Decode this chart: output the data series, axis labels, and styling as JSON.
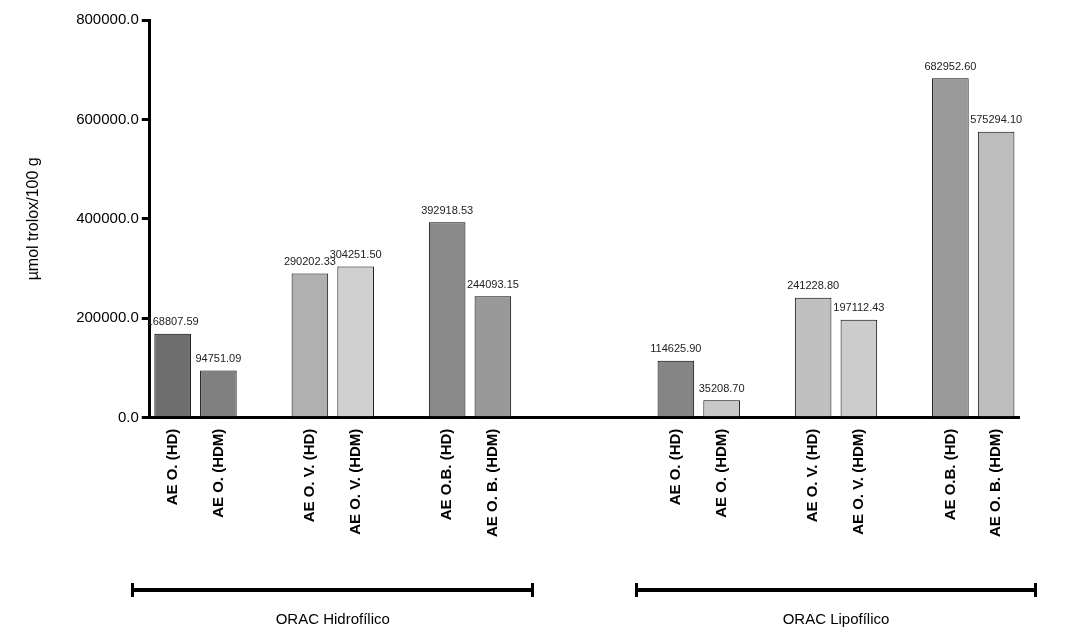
{
  "chart_data": {
    "type": "bar",
    "ylabel": "µmol trolox/100 g",
    "categories": [
      "AE O. (HD)",
      "AE O. (HDM)",
      null,
      "AE O. V. (HD)",
      "AE O. V. (HDM)",
      null,
      "AE O.B. (HD)",
      "AE O. B. (HDM)",
      null,
      null,
      null,
      "AE O. (HD)",
      "AE O. (HDM)",
      null,
      "AE O. V. (HD)",
      "AE O. V. (HDM)",
      null,
      "AE O.B. (HD)",
      "AE O. B. (HDM)"
    ],
    "values": [
      168807.59,
      94751.09,
      null,
      290202.33,
      304251.5,
      null,
      392918.53,
      244093.15,
      null,
      null,
      null,
      114625.9,
      35208.7,
      null,
      241228.8,
      197112.43,
      null,
      682952.6,
      575294.1
    ],
    "value_labels": [
      "168807.59",
      "94751.09",
      null,
      "290202.33",
      "304251.50",
      null,
      "392918.53",
      "244093.15",
      null,
      null,
      null,
      "114625.90",
      "35208.70",
      null,
      "241228.80",
      "197112.43",
      null,
      "682952.60",
      "575294.10"
    ],
    "colors": [
      "#6e6e6e",
      "#808080",
      null,
      "#b0b0b0",
      "#d0d0d0",
      null,
      "#8a8a8a",
      "#999999",
      null,
      null,
      null,
      "#858585",
      "#c8c8c8",
      null,
      "#c0c0c0",
      "#cccccc",
      null,
      "#9a9a9a",
      "#bdbdbd"
    ],
    "ylim": [
      0,
      800000
    ],
    "yticks": [
      {
        "value": 0,
        "label": "0.0"
      },
      {
        "value": 200000,
        "label": "200000.0"
      },
      {
        "value": 400000,
        "label": "400000.0"
      },
      {
        "value": 600000,
        "label": "600000.0"
      },
      {
        "value": 800000,
        "label": "800000.0"
      }
    ],
    "grid": false,
    "annotations": [
      "ORAC Hidrofílico",
      "ORAC Lipofílico"
    ]
  }
}
